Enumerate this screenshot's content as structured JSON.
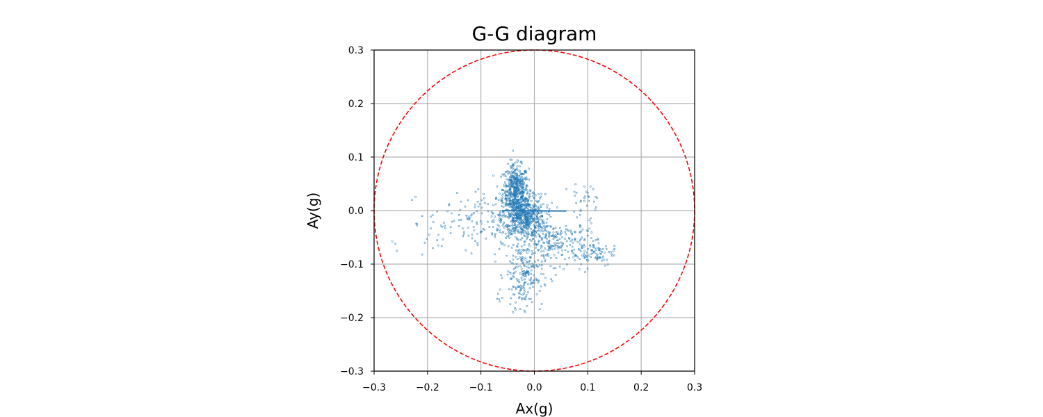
{
  "chart_data": {
    "type": "scatter",
    "title": "G-G diagram",
    "xlabel": "Ax(g)",
    "ylabel": "Ay(g)",
    "xlim": [
      -0.3,
      0.3
    ],
    "ylim": [
      -0.3,
      0.3
    ],
    "xticks": [
      "−0.3",
      "−0.2",
      "−0.1",
      "0.0",
      "0.1",
      "0.2",
      "0.3"
    ],
    "yticks": [
      "0.3",
      "0.2",
      "0.1",
      "0.0",
      "−0.1",
      "−0.2",
      "−0.3"
    ],
    "grid": true,
    "marker_color": "#1f77b4",
    "reference_circle": {
      "radius": 0.3,
      "color": "#ff0000",
      "style": "dashed"
    },
    "point_clusters": [
      {
        "center": [
          -0.035,
          0.04
        ],
        "spread": [
          0.012,
          0.022
        ],
        "count": 450
      },
      {
        "center": [
          -0.02,
          -0.01
        ],
        "spread": [
          0.02,
          0.02
        ],
        "count": 600
      },
      {
        "center": [
          0.04,
          -0.06
        ],
        "spread": [
          0.04,
          0.02
        ],
        "count": 260
      },
      {
        "center": [
          -0.02,
          -0.12
        ],
        "spread": [
          0.018,
          0.03
        ],
        "count": 200
      },
      {
        "center": [
          -0.1,
          -0.02
        ],
        "spread": [
          0.05,
          0.025
        ],
        "count": 160
      },
      {
        "center": [
          0.11,
          -0.08
        ],
        "spread": [
          0.02,
          0.012
        ],
        "count": 70
      },
      {
        "center": [
          0.1,
          0.02
        ],
        "spread": [
          0.012,
          0.015
        ],
        "count": 25
      }
    ],
    "points": [
      [
        -0.26,
        -0.062
      ],
      [
        -0.257,
        -0.075
      ],
      [
        -0.21,
        -0.082
      ],
      [
        -0.205,
        -0.06
      ],
      [
        -0.22,
        -0.025
      ],
      [
        -0.21,
        -0.01
      ],
      [
        -0.19,
        -0.07
      ],
      [
        -0.18,
        -0.065
      ],
      [
        -0.16,
        0.01
      ],
      [
        -0.155,
        -0.005
      ],
      [
        -0.11,
        0.035
      ],
      [
        -0.105,
        0.04
      ],
      [
        0.06,
        0.04
      ],
      [
        0.075,
        0.035
      ],
      [
        0.105,
        0.045
      ],
      [
        0.11,
        0.04
      ],
      [
        0.095,
        -0.115
      ],
      [
        0.12,
        -0.07
      ],
      [
        0.135,
        -0.072
      ],
      [
        0.15,
        -0.072
      ],
      [
        -0.07,
        -0.165
      ],
      [
        -0.065,
        -0.17
      ],
      [
        -0.06,
        -0.163
      ],
      [
        -0.045,
        -0.175
      ],
      [
        -0.04,
        -0.19
      ],
      [
        -0.035,
        -0.185
      ],
      [
        -0.045,
        0.095
      ],
      [
        -0.04,
        0.085
      ],
      [
        -0.03,
        0.075
      ],
      [
        0.01,
        -0.15
      ],
      [
        0.02,
        -0.14
      ],
      [
        0.04,
        -0.12
      ]
    ],
    "line_segment": {
      "x": [
        -0.06,
        0.06
      ],
      "y": [
        0.0,
        -0.001
      ]
    }
  }
}
